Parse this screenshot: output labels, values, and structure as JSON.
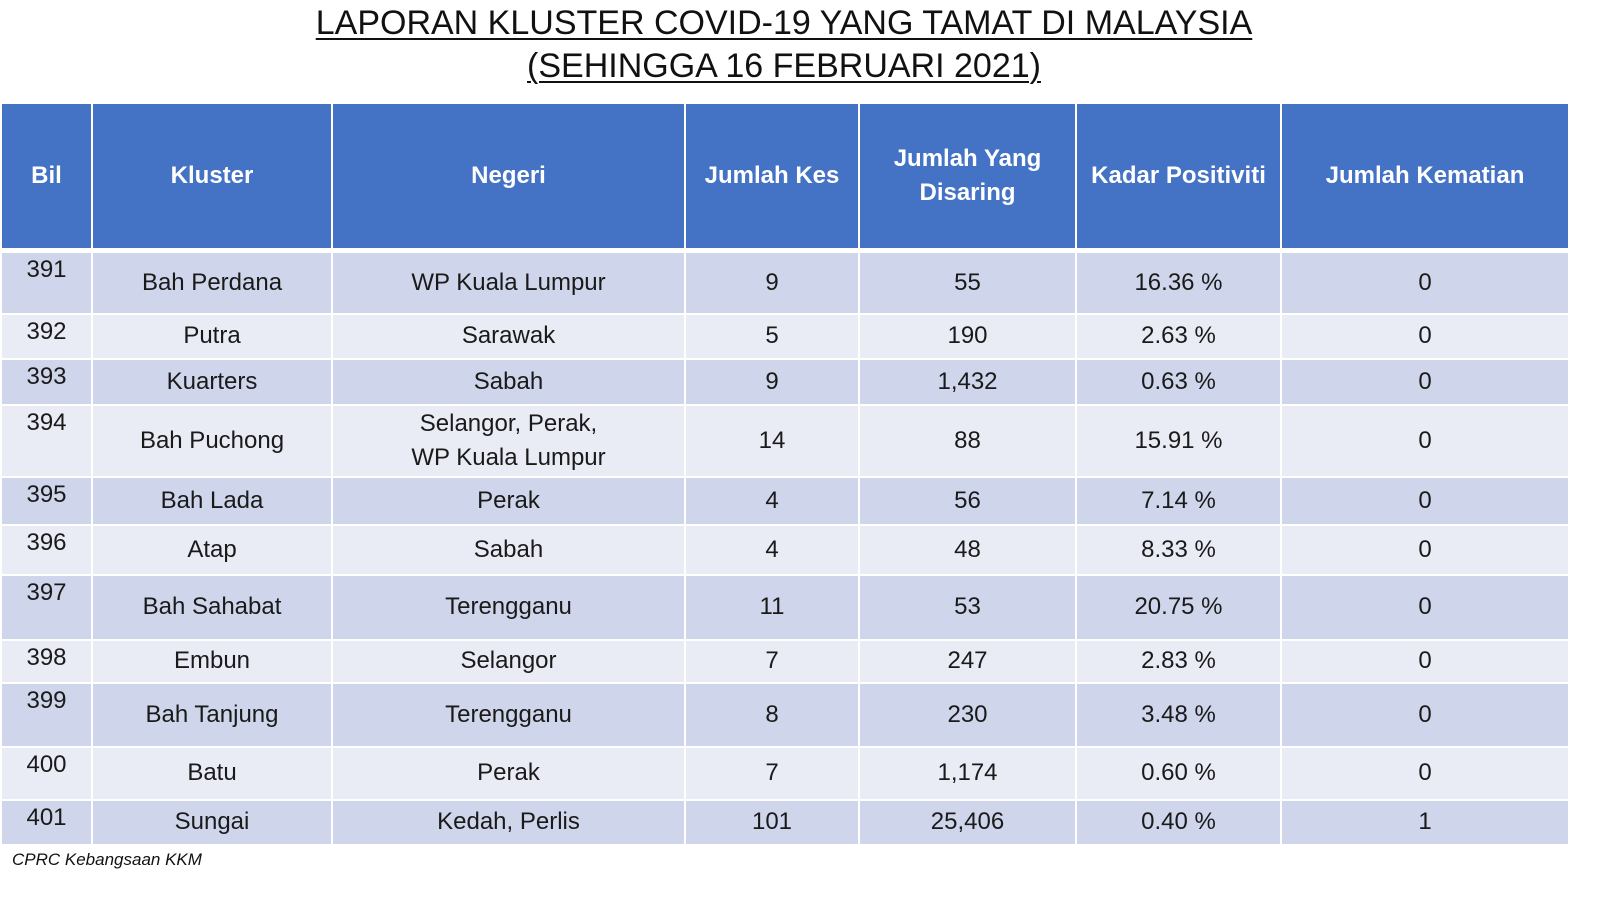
{
  "title": {
    "line1": "LAPORAN KLUSTER COVID-19 YANG TAMAT DI MALAYSIA",
    "line2": "(SEHINGGA 16 FEBRUARI 2021)"
  },
  "table": {
    "headers": {
      "bil": "Bil",
      "kluster": "Kluster",
      "negeri": "Negeri",
      "jumlah_kes": "Jumlah Kes",
      "jumlah_disaring_1": "Jumlah Yang",
      "jumlah_disaring_2": "Disaring",
      "kadar_positiviti": "Kadar Positiviti",
      "jumlah_kematian": "Jumlah Kematian"
    },
    "rows": [
      {
        "bil": "391",
        "kluster": "Bah Perdana",
        "negeri": "WP Kuala Lumpur",
        "negeri2": "",
        "kes": "9",
        "disaring": "55",
        "positiviti": "16.36 %",
        "kematian": "0"
      },
      {
        "bil": "392",
        "kluster": "Putra",
        "negeri": "Sarawak",
        "negeri2": "",
        "kes": "5",
        "disaring": "190",
        "positiviti": "2.63 %",
        "kematian": "0"
      },
      {
        "bil": "393",
        "kluster": "Kuarters",
        "negeri": "Sabah",
        "negeri2": "",
        "kes": "9",
        "disaring": "1,432",
        "positiviti": "0.63 %",
        "kematian": "0"
      },
      {
        "bil": "394",
        "kluster": "Bah Puchong",
        "negeri": "Selangor, Perak,",
        "negeri2": "WP Kuala Lumpur",
        "kes": "14",
        "disaring": "88",
        "positiviti": "15.91 %",
        "kematian": "0"
      },
      {
        "bil": "395",
        "kluster": "Bah Lada",
        "negeri": "Perak",
        "negeri2": "",
        "kes": "4",
        "disaring": "56",
        "positiviti": "7.14 %",
        "kematian": "0"
      },
      {
        "bil": "396",
        "kluster": "Atap",
        "negeri": "Sabah",
        "negeri2": "",
        "kes": "4",
        "disaring": "48",
        "positiviti": "8.33 %",
        "kematian": "0"
      },
      {
        "bil": "397",
        "kluster": "Bah Sahabat",
        "negeri": "Terengganu",
        "negeri2": "",
        "kes": "11",
        "disaring": "53",
        "positiviti": "20.75 %",
        "kematian": "0"
      },
      {
        "bil": "398",
        "kluster": "Embun",
        "negeri": "Selangor",
        "negeri2": "",
        "kes": "7",
        "disaring": "247",
        "positiviti": "2.83 %",
        "kematian": "0"
      },
      {
        "bil": "399",
        "kluster": "Bah Tanjung",
        "negeri": "Terengganu",
        "negeri2": "",
        "kes": "8",
        "disaring": "230",
        "positiviti": "3.48 %",
        "kematian": "0"
      },
      {
        "bil": "400",
        "kluster": "Batu",
        "negeri": "Perak",
        "negeri2": "",
        "kes": "7",
        "disaring": "1,174",
        "positiviti": "0.60 %",
        "kematian": "0"
      },
      {
        "bil": "401",
        "kluster": "Sungai",
        "negeri": "Kedah, Perlis",
        "negeri2": "",
        "kes": "101",
        "disaring": "25,406",
        "positiviti": "0.40 %",
        "kematian": "1"
      }
    ]
  },
  "footer": {
    "source": "CPRC Kebangsaan KKM"
  }
}
